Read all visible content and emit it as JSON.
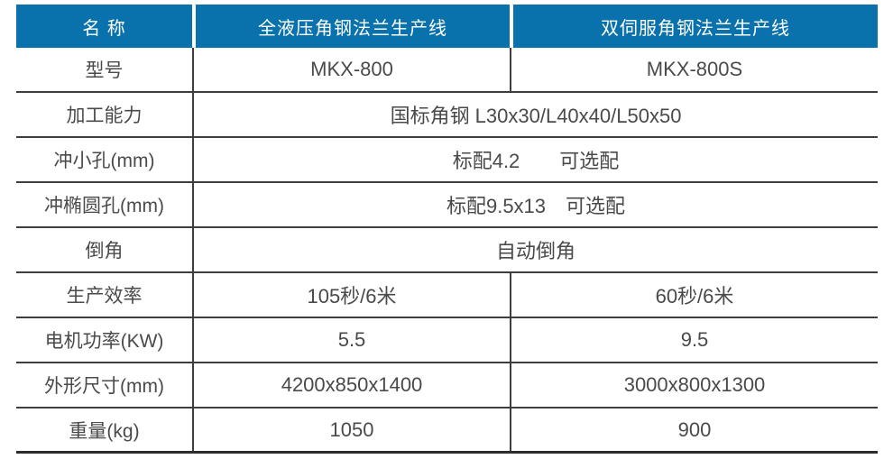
{
  "colors": {
    "header_bg": "#0971ab",
    "line": "#3d3d3d",
    "line_heavy": "#2c2c2c",
    "text": "#4a4a4a",
    "header_text": "#ffffff"
  },
  "table": {
    "header": [
      "名 称",
      "全液压角钢法兰生产线",
      "双伺服角钢法兰生产线"
    ],
    "rows": [
      {
        "label": "型号",
        "col1": "MKX-800",
        "col2": "MKX-800S"
      },
      {
        "label": "加工能力",
        "span": "国标角钢 L30x30/L40x40/L50x50"
      },
      {
        "label": "冲小孔(mm)",
        "span": "标配4.2　　可选配"
      },
      {
        "label": "冲椭圆孔(mm)",
        "span": "标配9.5x13　可选配"
      },
      {
        "label": "倒角",
        "span": "自动倒角"
      },
      {
        "label": "生产效率",
        "col1": "105秒/6米",
        "col2": "60秒/6米"
      },
      {
        "label": "电机功率(KW)",
        "col1": "5.5",
        "col2": "9.5"
      },
      {
        "label": "外形尺寸(mm)",
        "col1": "4200x850x1400",
        "col2": "3000x800x1300"
      },
      {
        "label": "重量(kg)",
        "col1": "1050",
        "col2": "900"
      }
    ]
  }
}
